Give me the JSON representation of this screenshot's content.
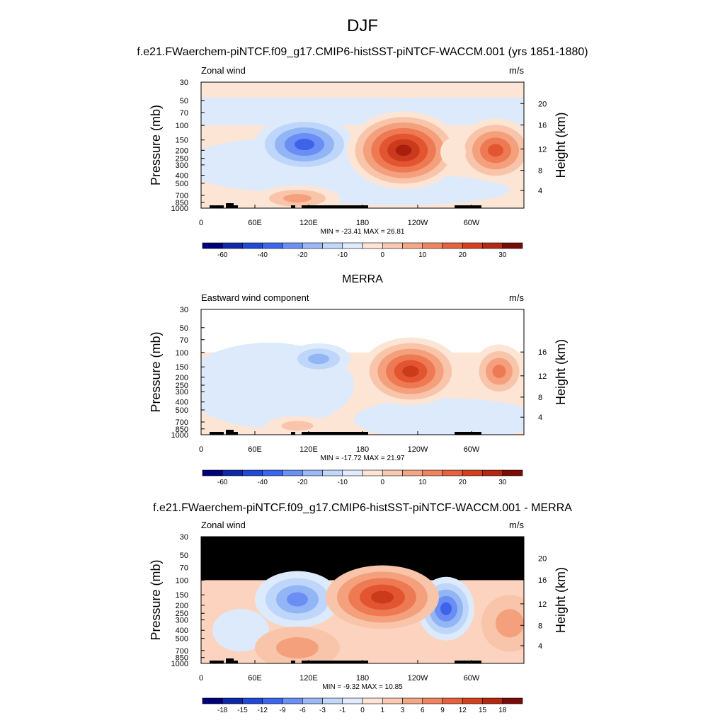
{
  "page": {
    "title": "DJF"
  },
  "chart_data": [
    {
      "type": "contour",
      "title": "f.e21.FWaerchem-piNTCF.f09_g17.CMIP6-histSST-piNTCF-WACCM.001 (yrs 1851-1880)",
      "left_label": "Zonal wind",
      "right_label": "m/s",
      "ylabel": "Pressure (mb)",
      "ylabel_right": "Height (km)",
      "x_ticks": [
        "0",
        "60E",
        "120E",
        "180",
        "120W",
        "60W"
      ],
      "y_ticks": [
        "30",
        "50",
        "70",
        "100",
        "150",
        "200",
        "250",
        "300",
        "400",
        "500",
        "700",
        "850",
        "1000"
      ],
      "y_right_ticks": [
        "4",
        "8",
        "12",
        "16",
        "20"
      ],
      "stats": "MIN = -23.41  MAX =  26.81",
      "colorbar_labels": [
        "-60",
        "-40",
        "-20",
        "-10",
        "0",
        "10",
        "20",
        "30"
      ],
      "data_top_pressure": 30
    },
    {
      "type": "contour",
      "title": "MERRA",
      "left_label": "Eastward wind component",
      "right_label": "m/s",
      "ylabel": "Pressure (mb)",
      "ylabel_right": "Height (km)",
      "x_ticks": [
        "0",
        "60E",
        "120E",
        "180",
        "120W",
        "60W"
      ],
      "y_ticks": [
        "30",
        "50",
        "70",
        "100",
        "150",
        "200",
        "250",
        "300",
        "400",
        "500",
        "700",
        "850",
        "1000"
      ],
      "y_right_ticks": [
        "4",
        "8",
        "12",
        "16"
      ],
      "stats": "MIN = -17.72  MAX =  21.97",
      "colorbar_labels": [
        "-60",
        "-40",
        "-20",
        "-10",
        "0",
        "10",
        "20",
        "30"
      ],
      "data_top_pressure": 100
    },
    {
      "type": "contour",
      "title": "f.e21.FWaerchem-piNTCF.f09_g17.CMIP6-histSST-piNTCF-WACCM.001 - MERRA",
      "left_label": "Zonal wind",
      "right_label": "m/s",
      "ylabel": "Pressure (mb)",
      "ylabel_right": "Height (km)",
      "x_ticks": [
        "0",
        "60E",
        "120E",
        "180",
        "120W",
        "60W"
      ],
      "y_ticks": [
        "30",
        "50",
        "70",
        "100",
        "150",
        "200",
        "250",
        "300",
        "400",
        "500",
        "700",
        "850",
        "1000"
      ],
      "y_right_ticks": [
        "4",
        "8",
        "12",
        "16",
        "20"
      ],
      "stats": "MIN = -9.32  MAX =  10.85",
      "colorbar_labels": [
        "-18",
        "-15",
        "-12",
        "-9",
        "-6",
        "-3",
        "-1",
        "0",
        "1",
        "3",
        "6",
        "9",
        "12",
        "15",
        "18"
      ],
      "data_top_pressure": 100
    }
  ]
}
